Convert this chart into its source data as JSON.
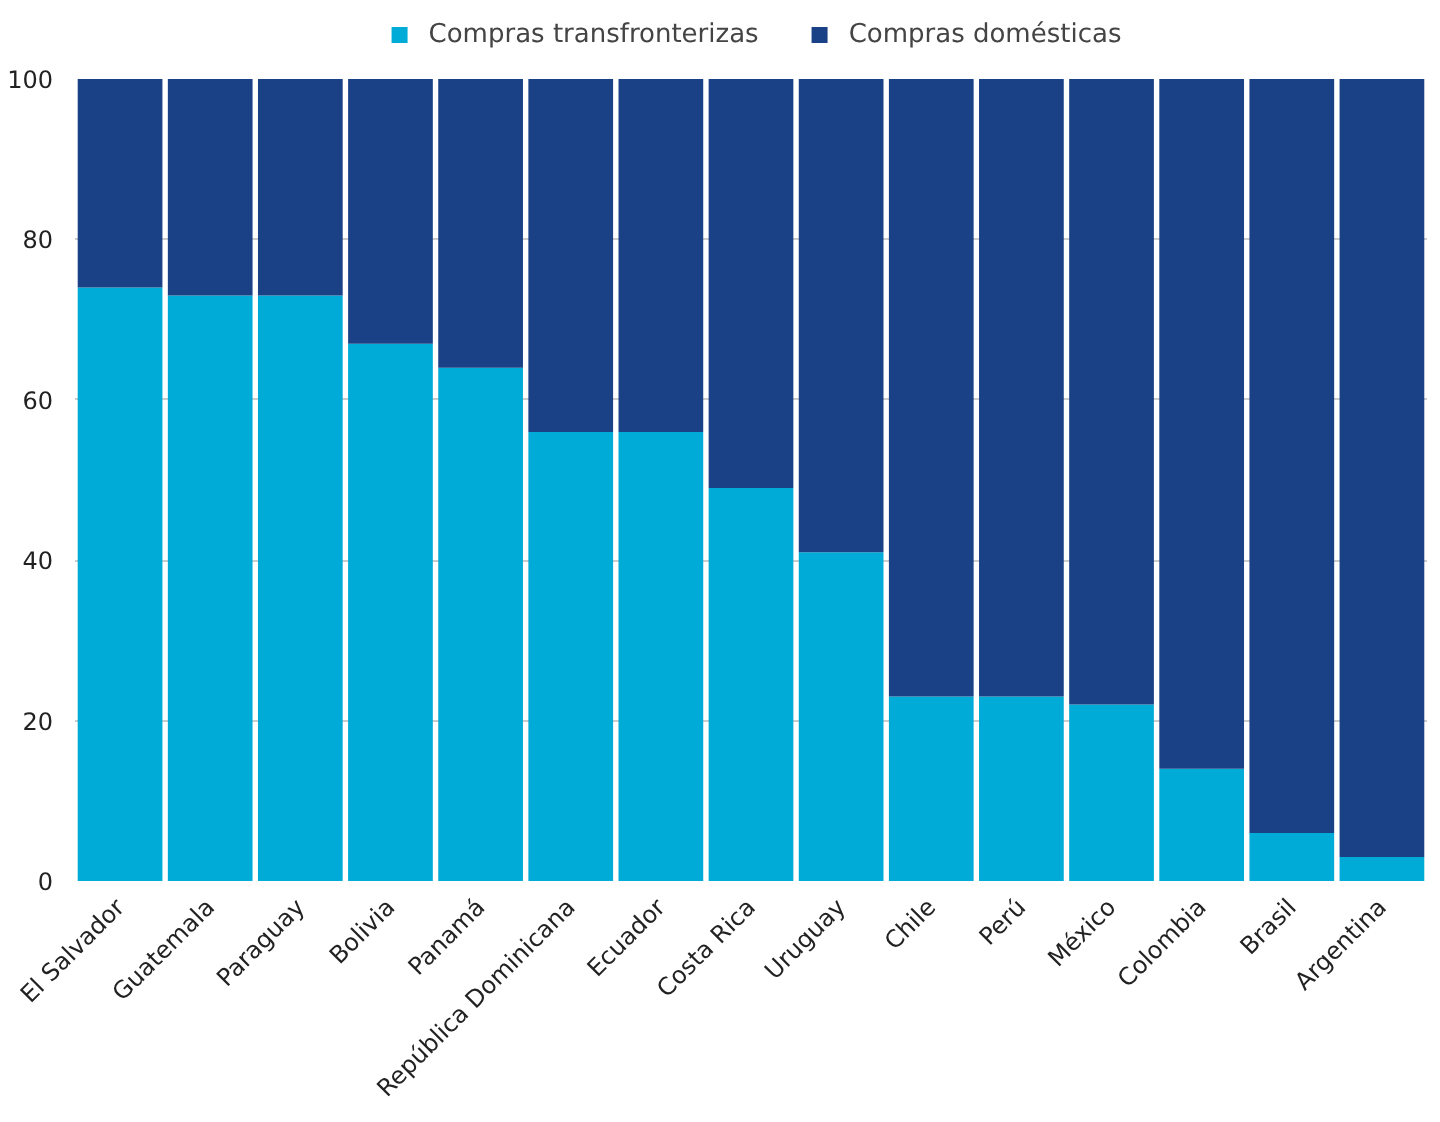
{
  "chart_data": {
    "type": "bar",
    "stacked": true,
    "categories": [
      "El Salvador",
      "Guatemala",
      "Paraguay",
      "Bolivia",
      "Panamá",
      "República Dominicana",
      "Ecuador",
      "Costa Rica",
      "Uruguay",
      "Chile",
      "Perú",
      "México",
      "Colombia",
      "Brasil",
      "Argentina"
    ],
    "series": [
      {
        "name": "Compras transfronterizas",
        "color": "#00acd7",
        "values": [
          74,
          73,
          73,
          67,
          64,
          56,
          56,
          49,
          41,
          23,
          23,
          22,
          14,
          6,
          3
        ]
      },
      {
        "name": "Compras domésticas",
        "color": "#1a4086",
        "values": [
          26,
          27,
          27,
          33,
          36,
          44,
          44,
          51,
          59,
          77,
          77,
          78,
          86,
          94,
          97
        ]
      }
    ],
    "ylim": [
      0,
      100
    ],
    "yticks": [
      0,
      20,
      40,
      60,
      80,
      100
    ],
    "grid": "y",
    "legend": "top"
  }
}
